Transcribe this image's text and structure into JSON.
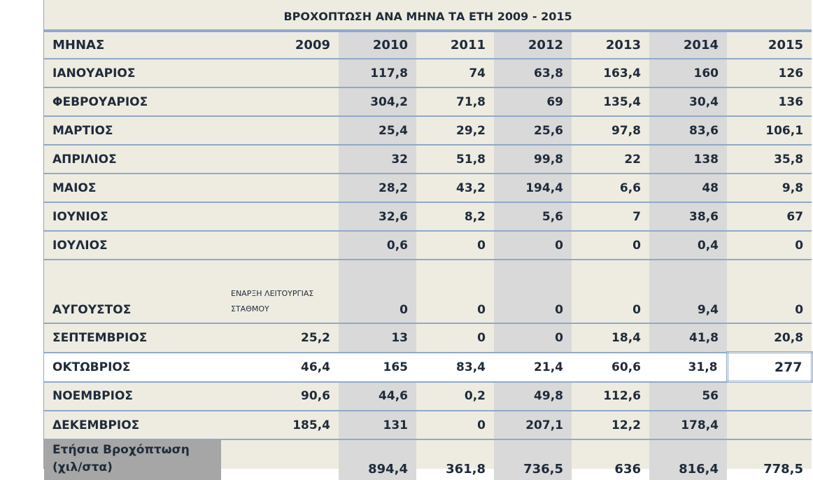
{
  "title": "ΒΡΟΧΟΠΤΩΣΗ ΑΝΑ ΜΗΝΑ ΤΑ ΕΤΗ 2009 - 2015",
  "header": {
    "month": "ΜΗΝΑΣ",
    "years": [
      "2009",
      "2010",
      "2011",
      "2012",
      "2013",
      "2014",
      "2015"
    ]
  },
  "rows": [
    {
      "month": "ΙΑΝΟΥΑΡΙΟΣ",
      "values": [
        "",
        "117,8",
        "74",
        "63,8",
        "163,4",
        "160",
        "126"
      ]
    },
    {
      "month": "ΦΕΒΡΟΥΑΡΙΟΣ",
      "values": [
        "",
        "304,2",
        "71,8",
        "69",
        "135,4",
        "30,4",
        "136"
      ]
    },
    {
      "month": "ΜΑΡΤΙΟΣ",
      "values": [
        "",
        "25,4",
        "29,2",
        "25,6",
        "97,8",
        "83,6",
        "106,1"
      ]
    },
    {
      "month": "ΑΠΡΙΛΙΟΣ",
      "values": [
        "",
        "32",
        "51,8",
        "99,8",
        "22",
        "138",
        "35,8"
      ]
    },
    {
      "month": "ΜΑΙΟΣ",
      "values": [
        "",
        "28,2",
        "43,2",
        "194,4",
        "6,6",
        "48",
        "9,8"
      ]
    },
    {
      "month": "ΙΟΥΝΙΟΣ",
      "values": [
        "",
        "32,6",
        "8,2",
        "5,6",
        "7",
        "38,6",
        "67"
      ]
    },
    {
      "month": "ΙΟΥΛΙΟΣ",
      "values": [
        "",
        "0,6",
        "0",
        "0",
        "0",
        "0,4",
        "0"
      ]
    },
    {
      "month": "ΑΥΓΟΥΣΤΟΣ",
      "note": "ΕΝΑΡΞΗ ΛΕΙΤΟΥΡΓΙΑΣ ΣΤΑΘΜΟΥ",
      "values": [
        "",
        "0",
        "0",
        "0",
        "0",
        "9,4",
        "0"
      ]
    },
    {
      "month": "ΣΕΠΤΕΜΒΡΙΟΣ",
      "values": [
        "25,2",
        "13",
        "0",
        "0",
        "18,4",
        "41,8",
        "20,8"
      ]
    },
    {
      "month": "ΟΚΤΩΒΡΙΟΣ",
      "values": [
        "46,4",
        "165",
        "83,4",
        "21,4",
        "60,6",
        "31,8",
        "277"
      ]
    },
    {
      "month": "ΝΟΕΜΒΡΙΟΣ",
      "values": [
        "90,6",
        "44,6",
        "0,2",
        "49,8",
        "112,6",
        "56",
        ""
      ]
    },
    {
      "month": "ΔΕΚΕΜΒΡΙΟΣ",
      "values": [
        "185,4",
        "131",
        "0",
        "207,1",
        "12,2",
        "178,4",
        ""
      ]
    }
  ],
  "total": {
    "label": "Ετήσια Βροχόπτωση (χιλ/στα)",
    "values": [
      "",
      "894,4",
      "361,8",
      "736,5",
      "636",
      "816,4",
      "778,5"
    ]
  }
}
